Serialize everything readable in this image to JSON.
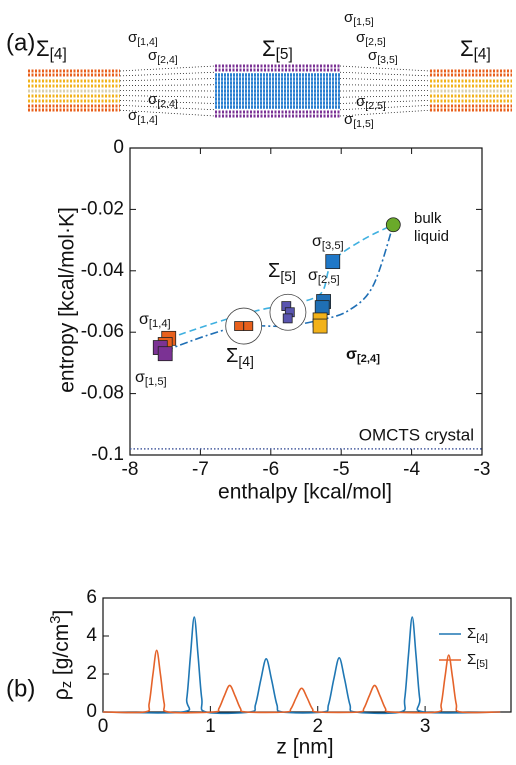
{
  "figure": {
    "panel_a": "(a)",
    "panel_b": "(b)"
  },
  "schematic": {
    "labels": [
      {
        "text": "Σ[4]",
        "color": "#1f6fb5"
      },
      {
        "text": "Σ[5]",
        "color": "#3fb0e0"
      },
      {
        "text": "Σ[4]",
        "color": "#1f6fb5"
      },
      {
        "text": "σ[1,4]",
        "color": "#e8601c"
      },
      {
        "text": "σ[2,4]",
        "color": "#f2b21a"
      },
      {
        "text": "σ[2,4]",
        "color": "#f2b21a"
      },
      {
        "text": "σ[1,4]",
        "color": "#e8601c"
      },
      {
        "text": "σ[1,5]",
        "color": "#7b3294"
      },
      {
        "text": "σ[2,5]",
        "color": "#1f6fb5"
      },
      {
        "text": "σ[3,5]",
        "color": "#3fb0e0"
      },
      {
        "text": "σ[2,5]",
        "color": "#1f6fb5"
      },
      {
        "text": "σ[1,5]",
        "color": "#7b3294"
      }
    ]
  },
  "chart_data": [
    {
      "type": "scatter",
      "xlabel": "enthalpy [kcal/mol]",
      "ylabel": "entropy [kcal/mol·K]",
      "xlim": [
        -8,
        -3
      ],
      "ylim": [
        -0.1,
        0
      ],
      "xticks": [
        -8,
        -7,
        -6,
        -5,
        -4,
        -3
      ],
      "yticks": [
        0,
        -0.02,
        -0.04,
        -0.06,
        -0.08,
        -0.1
      ],
      "groups": [
        {
          "color": "#6aaa2a",
          "marker": "circle",
          "x": [
            -4.26
          ],
          "y": [
            -0.025
          ]
        },
        {
          "label": "σ[3,5]",
          "label_color": "#3fb0e0",
          "color": "#1f78c8",
          "marker": "square",
          "x": [
            -5.12
          ],
          "y": [
            -0.037
          ]
        },
        {
          "label": "σ[2,5]",
          "label_color": "#1f6fb5",
          "color": "#1f6fb5",
          "marker": "square",
          "x": [
            -5.25,
            -5.27
          ],
          "y": [
            -0.05,
            -0.052
          ]
        },
        {
          "label": "σ[2,4]",
          "label_color": "#111111",
          "color": "#f2b21a",
          "marker": "square",
          "x": [
            -5.3,
            -5.3
          ],
          "y": [
            -0.056,
            -0.058
          ]
        },
        {
          "label": "Σ[5]",
          "label_color": "#3fb0e0",
          "color": "#5a55b0",
          "marker": "small",
          "encircled": true,
          "x": [
            -5.78,
            -5.73,
            -5.76
          ],
          "y": [
            -0.0515,
            -0.0535,
            -0.0555
          ]
        },
        {
          "label": "Σ[4]",
          "label_color": "#1f6fb5",
          "color": "#e8601c",
          "marker": "small",
          "encircled": true,
          "x": [
            -6.45,
            -6.32
          ],
          "y": [
            -0.058,
            -0.058
          ]
        },
        {
          "label": "σ[1,4]",
          "label_color": "#e8601c",
          "color": "#e8601c",
          "marker": "square",
          "x": [
            -7.45,
            -7.5
          ],
          "y": [
            -0.062,
            -0.064
          ]
        },
        {
          "label": "σ[1,5]",
          "label_color": "#7b3294",
          "color": "#7b3294",
          "marker": "square",
          "x": [
            -7.57,
            -7.5
          ],
          "y": [
            -0.065,
            -0.067
          ]
        }
      ],
      "curves": [
        {
          "color": "#3fb0e0",
          "style": "dashed",
          "x": [
            -7.45,
            -6.8,
            -6.2,
            -5.76,
            -5.4,
            -5.25,
            -5.12,
            -4.7,
            -4.26
          ],
          "y": [
            -0.062,
            -0.057,
            -0.053,
            -0.051,
            -0.049,
            -0.046,
            -0.037,
            -0.03,
            -0.025
          ]
        },
        {
          "color": "#1f6fb5",
          "style": "dashdot",
          "x": [
            -7.5,
            -6.9,
            -6.4,
            -5.8,
            -5.3,
            -4.9,
            -4.55,
            -4.26
          ],
          "y": [
            -0.066,
            -0.061,
            -0.058,
            -0.058,
            -0.056,
            -0.053,
            -0.045,
            -0.025
          ]
        }
      ],
      "reference": {
        "label": "OMCTS crystal",
        "y": -0.098,
        "color": "#4a5fa0"
      },
      "annotation": {
        "lines": [
          "bulk",
          "liquid"
        ],
        "color": "#6aaa2a"
      }
    },
    {
      "type": "line",
      "xlabel": "z [nm]",
      "ylabel": "ρz [g/cm3]",
      "xlim": [
        0,
        3.8
      ],
      "ylim": [
        0,
        6
      ],
      "xticks": [
        0,
        1,
        2,
        3
      ],
      "yticks": [
        0,
        2,
        4,
        6
      ],
      "legend": "upper right",
      "series": [
        {
          "name": "Σ[4]",
          "color": "#1f77b4",
          "x": [
            0,
            0.74,
            0.78,
            0.815,
            0.85,
            0.885,
            0.92,
            0.96,
            1.37,
            1.42,
            1.47,
            1.52,
            1.57,
            1.62,
            1.67,
            2.05,
            2.1,
            2.15,
            2.2,
            2.25,
            2.3,
            2.35,
            2.77,
            2.81,
            2.845,
            2.88,
            2.915,
            2.95,
            2.99,
            3.7
          ],
          "values": [
            0,
            0,
            0.7,
            3.0,
            5.0,
            3.0,
            0.7,
            0,
            0,
            0.38,
            1.7,
            2.8,
            1.7,
            0.38,
            0,
            0,
            0.38,
            1.74,
            2.85,
            1.74,
            0.38,
            0,
            0,
            0.7,
            3.0,
            5.0,
            3.0,
            0.7,
            0,
            0
          ]
        },
        {
          "name": "Σ[5]",
          "color": "#e5632a",
          "x": [
            0,
            0.39,
            0.43,
            0.465,
            0.5,
            0.535,
            0.57,
            0.61,
            1.03,
            1.08,
            1.13,
            1.18,
            1.23,
            1.28,
            1.33,
            1.7,
            1.75,
            1.8,
            1.85,
            1.9,
            1.95,
            2.0,
            2.38,
            2.43,
            2.48,
            2.53,
            2.58,
            2.63,
            2.68,
            3.11,
            3.15,
            3.185,
            3.22,
            3.255,
            3.29,
            3.33,
            3.7
          ],
          "values": [
            0,
            0,
            0.45,
            1.98,
            3.25,
            1.98,
            0.45,
            0,
            0,
            0.19,
            0.85,
            1.4,
            0.85,
            0.19,
            0,
            0,
            0.17,
            0.76,
            1.25,
            0.76,
            0.17,
            0,
            0,
            0.19,
            0.85,
            1.4,
            0.85,
            0.19,
            0,
            0,
            0.42,
            1.83,
            3.0,
            1.83,
            0.42,
            0,
            0
          ]
        }
      ]
    }
  ]
}
